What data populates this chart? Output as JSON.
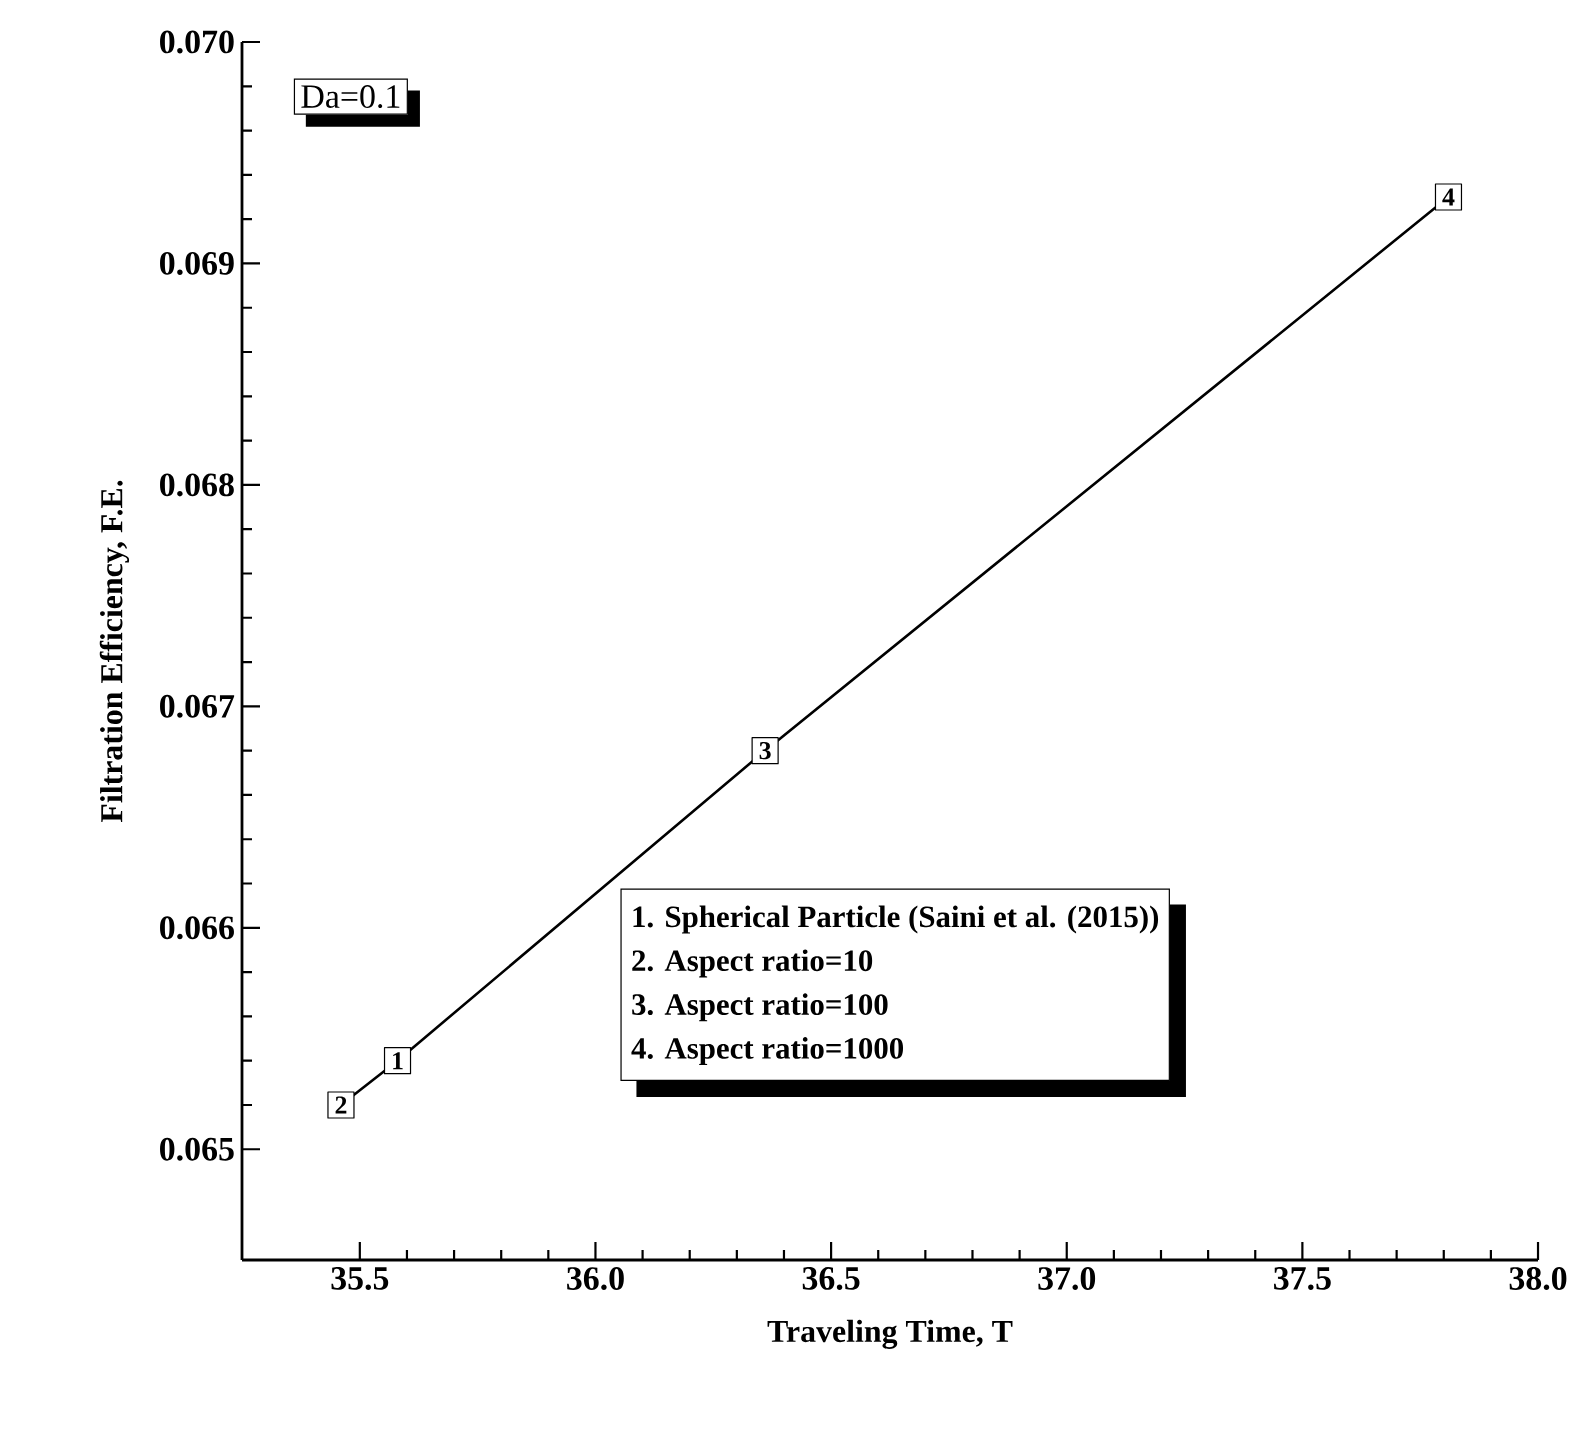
{
  "chart_data": {
    "type": "line",
    "xlabel": "Traveling Time, T",
    "ylabel": "Filtration Efficiency, F.E.",
    "x": [
      35.46,
      35.58,
      36.36,
      37.81
    ],
    "series": [
      {
        "color": "#000000",
        "values": [
          0.0652,
          0.0654,
          0.0668,
          0.0693
        ]
      }
    ],
    "xlim": [
      35.25,
      38.0
    ],
    "ylim": [
      0.0645,
      0.07
    ],
    "xticks": [
      35.5,
      {
        "value": 36.0,
        "label": "36.0"
      },
      36.5,
      {
        "value": 37.0,
        "label": "37.0"
      },
      37.5,
      {
        "value": 38.0,
        "label": "38.0"
      }
    ],
    "yticks": [
      0.065,
      0.066,
      0.067,
      0.068,
      0.069,
      {
        "value": 0.07,
        "label": "0.070"
      }
    ],
    "grid": false,
    "marker": "square",
    "line_style": "solid",
    "annotations": [
      "Da=0.1",
      "1. Spherical Particle (Saini et al. (2015))",
      "2. Aspect ratio=10",
      "3. Aspect ratio=100",
      "4. Aspect ratio=1000",
      {
        "text": "1",
        "x": 35.58,
        "y": 0.0654
      },
      {
        "text": "2",
        "x": 35.46,
        "y": 0.0652
      },
      {
        "text": "3",
        "x": 36.36,
        "y": 0.0668
      },
      {
        "text": "4",
        "x": 37.81,
        "y": 0.0693
      }
    ]
  }
}
